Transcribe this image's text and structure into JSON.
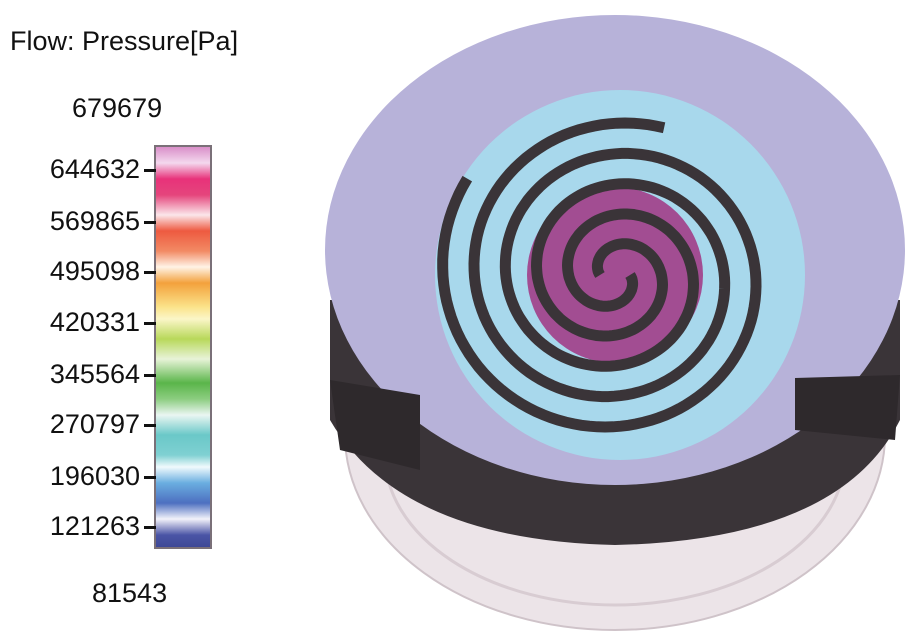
{
  "legend": {
    "title": "Flow: Pressure[Pa]",
    "max_label": "679679",
    "min_label": "81543",
    "ticks": [
      "644632",
      "569865",
      "495098",
      "420331",
      "345564",
      "270797",
      "196030",
      "121263"
    ],
    "colormap": [
      "#d98fc9",
      "#e8327a",
      "#ee5a40",
      "#f3a13c",
      "#fbe38a",
      "#b8d85a",
      "#5ab54a",
      "#6ac8c8",
      "#6aaee0",
      "#4d6fc0",
      "#3f4896"
    ]
  },
  "model": {
    "colors": {
      "outer_face": "#b7b2d9",
      "middle_region": "#9fd3ea",
      "core": "#a24d92",
      "walls": "#3a3438",
      "housing": "#e6dbe0"
    }
  }
}
